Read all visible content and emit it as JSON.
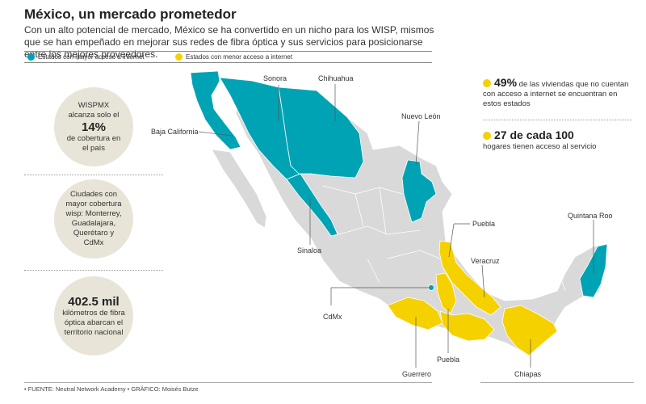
{
  "header": {
    "title": "México, un mercado prometedor",
    "subtitle": "Con un alto potencial de mercado, México se ha convertido en un nicho para los WISP, mismos que se han empeñado en mejorar sus redes de fibra óptica y sus servicios para posicionarse entre los mejores proveedores."
  },
  "legend": [
    {
      "label": "Estados con mayor acceso a internet",
      "color": "#00a3b4"
    },
    {
      "label": "Estados con menor acceso a internet",
      "color": "#f5d100"
    }
  ],
  "circles": [
    {
      "pre": "WISPMX alcanza solo el",
      "big": "14%",
      "post": "de cobertura en el país"
    },
    {
      "pre": "",
      "big": "",
      "post": "Ciudades con mayor cobertura wisp: Monterrey, Guadalajara, Querétaro y CdMx"
    },
    {
      "pre": "",
      "big": "402.5 mil",
      "post": "kilómetros de fibra óptica abarcan el territorio nacional"
    }
  ],
  "stats": [
    {
      "big": "49%",
      "text": "de las viviendas que no cuentan con acceso a internet se encuentran en estos estados"
    },
    {
      "big": "27 de cada 100",
      "text": "hogares tienen acceso al servicio"
    }
  ],
  "map_labels": {
    "sonora": "Sonora",
    "chihuahua": "Chihuahua",
    "baja_california": "Baja California",
    "nuevo_leon": "Nuevo León",
    "sinaloa": "Sinaloa",
    "puebla_top": "Puebla",
    "veracruz": "Veracruz",
    "quintana_roo": "Quintana Roo",
    "cdmx": "CdMx",
    "puebla_bottom": "Puebla",
    "guerrero": "Guerrero",
    "chiapas": "Chiapas"
  },
  "colors": {
    "high": "#00a3b4",
    "low": "#f5d100",
    "base": "#d9d9d9",
    "circle": "#e8e4d8"
  },
  "footer": {
    "text": "• FUENTE: Neutral Network Academy • GRÁFICO: Moisés Butze"
  }
}
